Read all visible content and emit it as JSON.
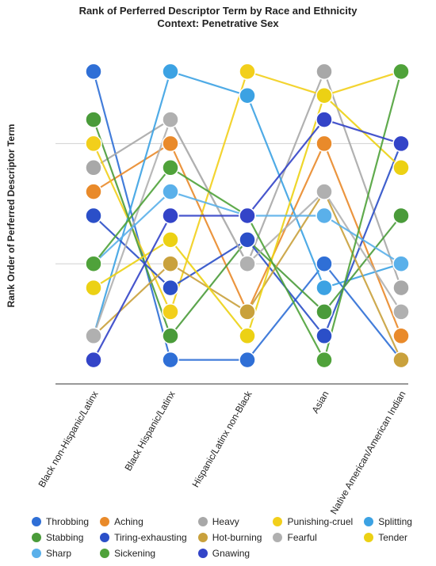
{
  "chart_data": {
    "type": "line",
    "title": "Rank of Perferred Descriptor Term by Race and Ethnicity",
    "subtitle": "Context: Penetrative Sex",
    "xlabel": "",
    "ylabel": "Rank Order of Perferred Descriptor Term",
    "categories": [
      "Black non-Hispanic/Latinx",
      "Black Hispanic/Latinx",
      "Hispanic/Latinx non-Black",
      "Asian",
      "Native American/American Indian"
    ],
    "ylim": [
      0,
      14
    ],
    "grid": true,
    "legend_position": "bottom",
    "series": [
      {
        "name": "Throbbing",
        "color": "#2f6fd6",
        "values": [
          13,
          1,
          1,
          5,
          1
        ]
      },
      {
        "name": "Aching",
        "color": "#e98a2a",
        "values": [
          8,
          10,
          3,
          10,
          2
        ]
      },
      {
        "name": "Heavy",
        "color": "#a8a8a8",
        "values": [
          9,
          11,
          5,
          13,
          4
        ]
      },
      {
        "name": "Punishing-cruel",
        "color": "#f2cf1b",
        "values": [
          10,
          3,
          13,
          12,
          13
        ]
      },
      {
        "name": "Splitting",
        "color": "#3ca2e3",
        "values": [
          2,
          13,
          12,
          4,
          5
        ]
      },
      {
        "name": "Stabbing",
        "color": "#4a9b3a",
        "values": [
          11,
          2,
          6,
          3,
          7
        ]
      },
      {
        "name": "Tiring-exhausting",
        "color": "#2b4fc8",
        "values": [
          7,
          4,
          6,
          2,
          10
        ]
      },
      {
        "name": "Hot-burning",
        "color": "#c9a13c",
        "values": [
          2,
          5,
          3,
          8,
          1
        ]
      },
      {
        "name": "Fearful",
        "color": "#b0b0b0",
        "values": [
          2,
          11,
          5,
          8,
          3
        ]
      },
      {
        "name": "Tender",
        "color": "#ecd114",
        "values": [
          4,
          6,
          2,
          12,
          9
        ]
      },
      {
        "name": "Sharp",
        "color": "#5ab0ea",
        "values": [
          5,
          8,
          7,
          7,
          5
        ]
      },
      {
        "name": "Sickening",
        "color": "#4fa23a",
        "values": [
          5,
          9,
          7,
          1,
          13
        ]
      },
      {
        "name": "Gnawing",
        "color": "#3344c8",
        "values": [
          1,
          7,
          7,
          11,
          10
        ]
      }
    ]
  }
}
